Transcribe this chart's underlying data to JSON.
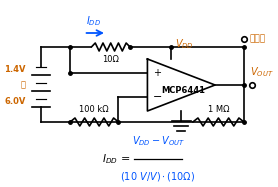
{
  "bg_color": "#ffffff",
  "line_color": "#000000",
  "blue_color": "#0055ff",
  "orange_color": "#cc6600",
  "fig_width": 2.78,
  "fig_height": 1.87,
  "dpi": 100,
  "label_14V": "1.4V",
  "label_at": "至",
  "label_60V": "6.0V",
  "to_load": "至负载",
  "r10_label": "10Ω",
  "r100k_label": "100 kΩ",
  "r1M_label": "1 MΩ",
  "mcp_label": "MCP6441"
}
